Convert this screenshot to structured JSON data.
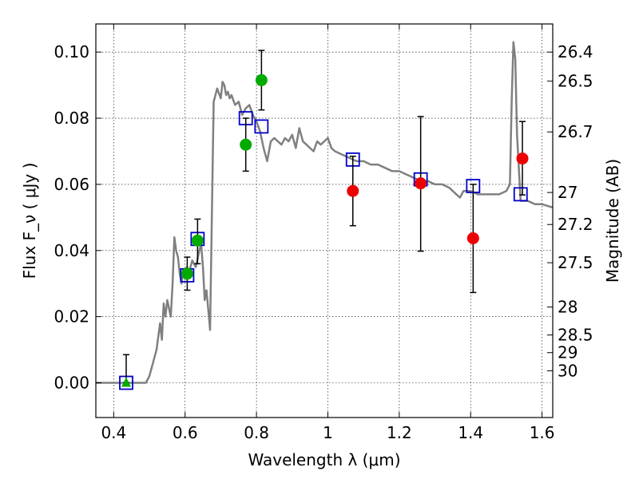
{
  "chart_data": {
    "type": "scatter",
    "title": "",
    "xlabel": "Wavelength  λ (μm)",
    "ylabel": "Flux  F_ν  ( μJy )",
    "ylabel_right": "Magnitude (AB)",
    "xlim": [
      0.35,
      1.63
    ],
    "ylim": [
      -0.0105,
      0.1085
    ],
    "x_ticks": [
      {
        "value": 0.4,
        "label": "0.4"
      },
      {
        "value": 0.6,
        "label": "0.6"
      },
      {
        "value": 0.8,
        "label": "0.8"
      },
      {
        "value": 1.0,
        "label": "1"
      },
      {
        "value": 1.2,
        "label": "1.2"
      },
      {
        "value": 1.4,
        "label": "1.4"
      },
      {
        "value": 1.6,
        "label": "1.6"
      }
    ],
    "y_ticks": [
      {
        "value": 0.0,
        "label": "0.00"
      },
      {
        "value": 0.02,
        "label": "0.02"
      },
      {
        "value": 0.04,
        "label": "0.04"
      },
      {
        "value": 0.06,
        "label": "0.06"
      },
      {
        "value": 0.08,
        "label": "0.08"
      },
      {
        "value": 0.1,
        "label": "0.10"
      }
    ],
    "mag_ticks": [
      {
        "value": 26.4,
        "label": "26.4"
      },
      {
        "value": 26.5,
        "label": "26.5"
      },
      {
        "value": 26.7,
        "label": "26.7"
      },
      {
        "value": 27.0,
        "label": "27"
      },
      {
        "value": 27.2,
        "label": "27.2"
      },
      {
        "value": 27.5,
        "label": "27.5"
      },
      {
        "value": 28.0,
        "label": "28"
      },
      {
        "value": 28.5,
        "label": "28.5"
      },
      {
        "value": 29.0,
        "label": "29"
      },
      {
        "value": 30.0,
        "label": "30"
      }
    ],
    "grid": true,
    "model_sed": {
      "name": "model spectrum",
      "color": "#808080",
      "x": [
        0.35,
        0.49,
        0.5,
        0.52,
        0.53,
        0.535,
        0.54,
        0.545,
        0.55,
        0.56,
        0.565,
        0.57,
        0.575,
        0.58,
        0.585,
        0.59,
        0.595,
        0.6,
        0.605,
        0.61,
        0.62,
        0.63,
        0.64,
        0.645,
        0.65,
        0.655,
        0.66,
        0.665,
        0.67,
        0.68,
        0.69,
        0.7,
        0.705,
        0.71,
        0.715,
        0.72,
        0.725,
        0.73,
        0.74,
        0.75,
        0.76,
        0.77,
        0.78,
        0.79,
        0.8,
        0.81,
        0.82,
        0.83,
        0.84,
        0.85,
        0.86,
        0.87,
        0.88,
        0.89,
        0.9,
        0.91,
        0.92,
        0.93,
        0.94,
        0.95,
        0.96,
        0.97,
        0.98,
        0.99,
        1.0,
        1.01,
        1.02,
        1.04,
        1.06,
        1.08,
        1.1,
        1.12,
        1.14,
        1.16,
        1.18,
        1.2,
        1.22,
        1.24,
        1.26,
        1.28,
        1.3,
        1.32,
        1.34,
        1.36,
        1.37,
        1.38,
        1.4,
        1.42,
        1.44,
        1.46,
        1.48,
        1.5,
        1.51,
        1.515,
        1.52,
        1.525,
        1.53,
        1.54,
        1.55,
        1.56,
        1.58,
        1.6,
        1.63
      ],
      "y": [
        0.0,
        0.0,
        0.002,
        0.01,
        0.018,
        0.013,
        0.024,
        0.02,
        0.025,
        0.02,
        0.03,
        0.044,
        0.04,
        0.038,
        0.033,
        0.03,
        0.034,
        0.033,
        0.035,
        0.033,
        0.037,
        0.035,
        0.04,
        0.042,
        0.035,
        0.025,
        0.028,
        0.022,
        0.016,
        0.085,
        0.089,
        0.086,
        0.091,
        0.09,
        0.087,
        0.088,
        0.086,
        0.087,
        0.084,
        0.085,
        0.081,
        0.083,
        0.084,
        0.081,
        0.079,
        0.076,
        0.071,
        0.067,
        0.073,
        0.074,
        0.073,
        0.072,
        0.074,
        0.073,
        0.075,
        0.071,
        0.077,
        0.073,
        0.072,
        0.071,
        0.07,
        0.073,
        0.072,
        0.073,
        0.074,
        0.071,
        0.07,
        0.069,
        0.068,
        0.067,
        0.067,
        0.066,
        0.066,
        0.065,
        0.064,
        0.064,
        0.063,
        0.062,
        0.061,
        0.061,
        0.06,
        0.06,
        0.059,
        0.057,
        0.056,
        0.058,
        0.058,
        0.057,
        0.057,
        0.057,
        0.057,
        0.058,
        0.06,
        0.085,
        0.103,
        0.098,
        0.075,
        0.055,
        0.055,
        0.055,
        0.054,
        0.054,
        0.053
      ]
    },
    "model_photometry": {
      "name": "model fluxes",
      "marker": "open-square",
      "color": "#0000cc",
      "points": [
        {
          "x": 0.435,
          "y": 0.0
        },
        {
          "x": 0.606,
          "y": 0.0325
        },
        {
          "x": 0.635,
          "y": 0.0435
        },
        {
          "x": 0.77,
          "y": 0.08
        },
        {
          "x": 0.814,
          "y": 0.0775
        },
        {
          "x": 1.07,
          "y": 0.0675
        },
        {
          "x": 1.26,
          "y": 0.0615
        },
        {
          "x": 1.407,
          "y": 0.0595
        },
        {
          "x": 1.54,
          "y": 0.057
        }
      ]
    },
    "upper_limits": {
      "name": "upper limit",
      "marker": "triangle",
      "color": "#00aa00",
      "points": [
        {
          "x": 0.435,
          "y": 0.0,
          "ylo": 0.0,
          "yhi": 0.0085
        }
      ]
    },
    "optical_detections": {
      "name": "optical photometry",
      "marker": "circle",
      "color": "#00aa00",
      "points": [
        {
          "x": 0.606,
          "y": 0.033,
          "ylo": 0.028,
          "yhi": 0.038
        },
        {
          "x": 0.635,
          "y": 0.043,
          "ylo": 0.036,
          "yhi": 0.0495
        },
        {
          "x": 0.77,
          "y": 0.072,
          "ylo": 0.064,
          "yhi": 0.08
        },
        {
          "x": 0.814,
          "y": 0.0915,
          "ylo": 0.0825,
          "yhi": 0.1005
        }
      ]
    },
    "nir_detections": {
      "name": "near-IR photometry",
      "marker": "circle",
      "color": "#ee0000",
      "points": [
        {
          "x": 1.07,
          "y": 0.058,
          "ylo": 0.0475,
          "yhi": 0.0685
        },
        {
          "x": 1.26,
          "y": 0.0603,
          "ylo": 0.0398,
          "yhi": 0.0805
        },
        {
          "x": 1.407,
          "y": 0.0437,
          "ylo": 0.0273,
          "yhi": 0.06
        },
        {
          "x": 1.545,
          "y": 0.0678,
          "ylo": 0.0568,
          "yhi": 0.079
        }
      ]
    }
  }
}
